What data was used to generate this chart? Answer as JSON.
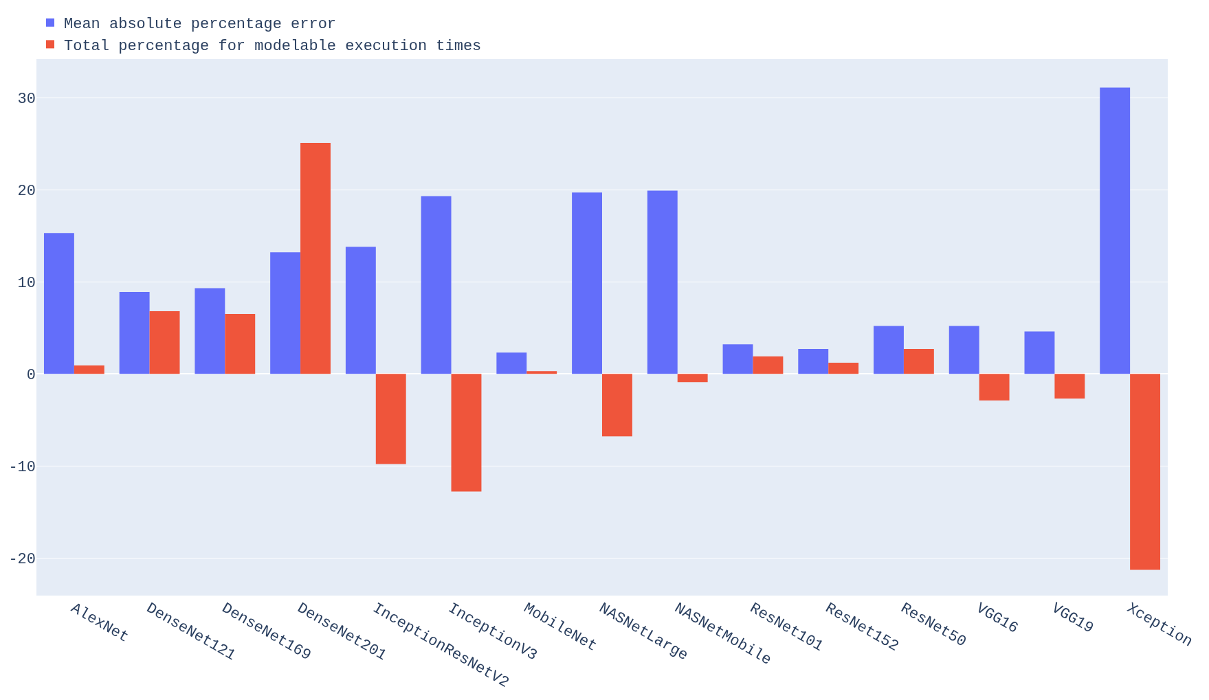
{
  "chart_data": {
    "type": "bar",
    "categories": [
      "AlexNet",
      "DenseNet121",
      "DenseNet169",
      "DenseNet201",
      "InceptionResNetV2",
      "InceptionV3",
      "MobileNet",
      "NASNetLarge",
      "NASNetMobile",
      "ResNet101",
      "ResNet152",
      "ResNet50",
      "VGG16",
      "VGG19",
      "Xception"
    ],
    "series": [
      {
        "name": "Mean absolute percentage error",
        "color": "#636efa",
        "values": [
          15.3,
          8.9,
          9.3,
          13.2,
          13.8,
          19.3,
          2.3,
          19.7,
          19.9,
          3.2,
          2.7,
          5.2,
          5.2,
          4.6,
          31.1
        ]
      },
      {
        "name": "Total percentage for modelable execution times",
        "color": "#ef553b",
        "values": [
          0.9,
          6.8,
          6.5,
          25.1,
          -9.8,
          -12.8,
          0.3,
          -6.8,
          -0.9,
          1.9,
          1.2,
          2.7,
          -2.9,
          -2.7,
          -21.3
        ]
      }
    ],
    "ylim": [
      -24.1,
      34.2
    ],
    "yticks": [
      -20,
      -10,
      0,
      10,
      20,
      30
    ],
    "grid": true,
    "legend": "top left"
  }
}
